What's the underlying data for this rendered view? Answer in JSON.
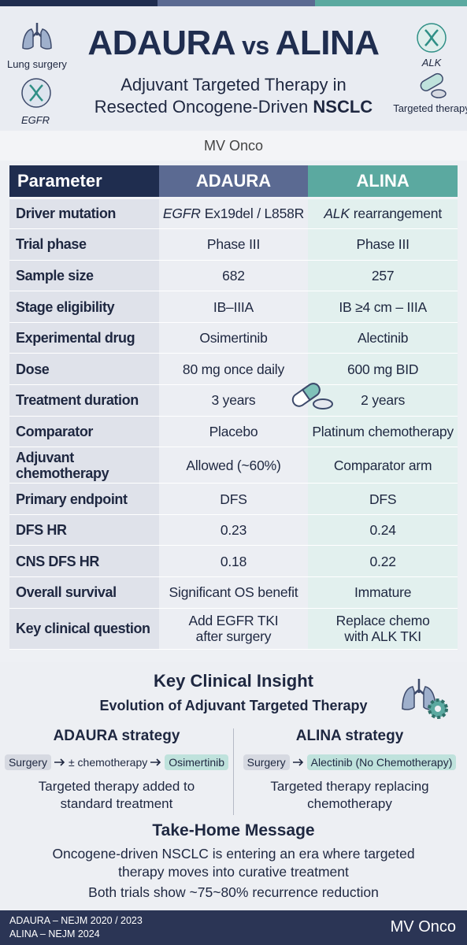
{
  "header": {
    "title_left": "ADAURA",
    "title_mid": "vs",
    "title_right": "ALINA",
    "subtitle_line1": "Adjuvant Targeted Therapy in",
    "subtitle_line2": "Resected Oncogene-Driven",
    "subtitle_bold": "NSCLC",
    "icon_labels": [
      "Lung surgery",
      "EGFR",
      "ALK",
      "Targeted therapy"
    ]
  },
  "brand": "MV Onco",
  "table": {
    "columns": [
      "Parameter",
      "ADAURA",
      "ALINA"
    ],
    "rows": [
      [
        "Driver mutation",
        {
          "em": "EGFR",
          "text": "Ex19del / L858R"
        },
        {
          "em": "ALK",
          "text": "rearrangement"
        }
      ],
      [
        "Trial phase",
        "Phase III",
        "Phase III"
      ],
      [
        "Sample size",
        "682",
        "257"
      ],
      [
        "Stage eligibility",
        "IB–IIIA",
        "IB ≥4 cm – IIIA"
      ],
      [
        "Experimental drug",
        "Osimertinib",
        "Alectinib"
      ],
      [
        "Dose",
        "80 mg once daily",
        "600 mg BID"
      ],
      [
        "Treatment duration",
        "3 years",
        "2 years"
      ],
      [
        "Comparator",
        "Placebo",
        "Platinum chemotherapy"
      ],
      [
        "Adjuvant chemotherapy",
        "Allowed (~60%)",
        "Comparator arm"
      ],
      [
        "Primary endpoint",
        "DFS",
        "DFS"
      ],
      [
        "DFS HR",
        "0.23",
        "0.24"
      ],
      [
        "CNS DFS HR",
        "0.18",
        "0.22"
      ],
      [
        "Overall survival",
        "Significant OS benefit",
        "Immature"
      ],
      [
        "Key clinical question",
        [
          "Add EGFR TKI",
          "after surgery"
        ],
        [
          "Replace chemo",
          "with ALK TKI"
        ]
      ]
    ]
  },
  "insight": {
    "title": "Key Clinical Insight",
    "subtitle": "Evolution of Adjuvant Targeted Therapy",
    "strategies": [
      {
        "title": "ADAURA strategy",
        "steps": [
          "Surgery",
          "± chemotherapy",
          "Osimertinib"
        ],
        "description": [
          "Targeted therapy added to",
          "standard treatment"
        ]
      },
      {
        "title": "ALINA strategy",
        "steps": [
          "Surgery",
          "Alectinib (No Chemotherapy)"
        ],
        "description": [
          "Targeted therapy replacing",
          "chemotherapy"
        ]
      }
    ],
    "takehome_title": "Take-Home Message",
    "takehome_lines": [
      "Oncogene-driven NSCLC is entering an era where targeted",
      "therapy moves into curative treatment",
      "Both trials show ~75~80% recurrence reduction"
    ]
  },
  "footer": {
    "refs": [
      "ADAURA – NEJM 2020 / 2023",
      "ALINA – NEJM 2024"
    ],
    "brand": "MV Onco"
  }
}
